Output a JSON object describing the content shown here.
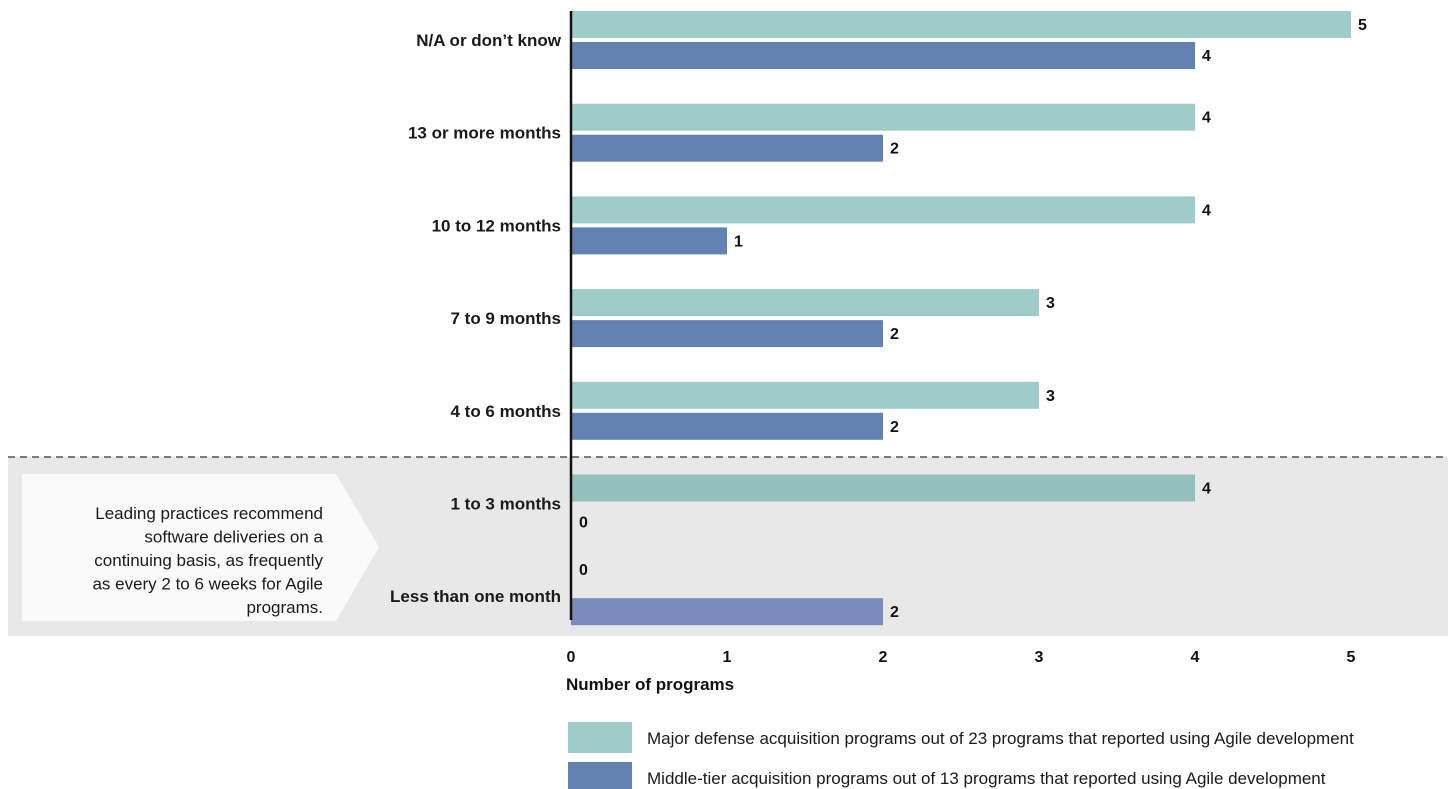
{
  "chart_data": {
    "type": "bar",
    "orientation": "horizontal",
    "categories": [
      "N/A or don’t know",
      "13 or more months",
      "10 to 12 months",
      "7 to 9 months",
      "4 to 6 months",
      "1 to 3 months",
      "Less than one month"
    ],
    "series": [
      {
        "name": "Major defense acquisition programs out of 23 programs that reported using Agile development",
        "color": "#9fccc8",
        "values": [
          5,
          4,
          4,
          3,
          3,
          4,
          0
        ]
      },
      {
        "name": "Middle-tier acquisition programs out of 13 programs that reported using Agile development",
        "color": "#6283b2",
        "values": [
          4,
          2,
          1,
          2,
          2,
          0,
          2
        ]
      }
    ],
    "x_ticks": [
      "0",
      "1",
      "2",
      "3",
      "4",
      "5"
    ],
    "xlim": [
      0,
      5
    ],
    "xlabel": "Number of programs",
    "ylabel": "",
    "grid": false,
    "legend_position": "bottom",
    "highlight": {
      "categories": [
        "1 to 3 months",
        "Less than one month"
      ],
      "band_color": "#e8e8e8",
      "series_colors_in_band": [
        "#93c0bc",
        "#7b8bbb"
      ],
      "note": "Leading practices recommend software deliveries on a continuing basis, as frequently as every 2 to 6 weeks for Agile programs."
    }
  }
}
